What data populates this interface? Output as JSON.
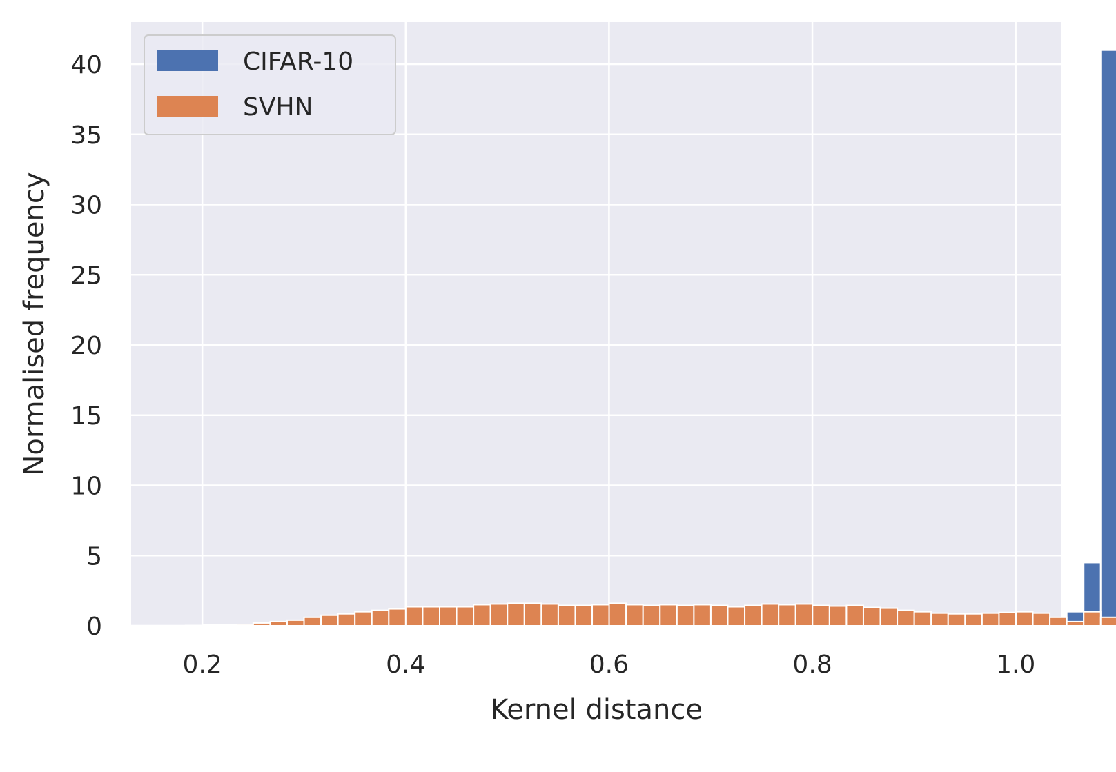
{
  "chart_data": {
    "type": "bar",
    "title": "",
    "xlabel": "Kernel distance",
    "ylabel": "Normalised frequency",
    "xlim": [
      0.13,
      1.045
    ],
    "ylim": [
      0,
      43
    ],
    "x_ticks": [
      "0.2",
      "0.4",
      "0.6",
      "0.8",
      "1.0"
    ],
    "y_ticks": [
      "0",
      "5",
      "10",
      "15",
      "20",
      "25",
      "30",
      "35",
      "40"
    ],
    "grid": true,
    "legend_position": "top-left",
    "bin_width": 0.01667,
    "bin_start": 0.1667,
    "series": [
      {
        "name": "CIFAR-10",
        "color": "#4c72b0",
        "values": [
          0.0,
          0.0,
          0.0,
          0.0,
          0.0,
          0.0,
          0.0,
          0.0,
          0.0,
          0.0,
          0.0,
          0.0,
          0.0,
          0.0,
          0.0,
          0.0,
          0.0,
          0.0,
          0.0,
          0.0,
          0.0,
          0.0,
          0.0,
          0.0,
          0.0,
          0.0,
          0.0,
          0.0,
          0.0,
          0.0,
          0.0,
          0.0,
          0.0,
          0.0,
          0.0,
          0.0,
          0.0,
          0.0,
          0.0,
          0.0,
          0.0,
          0.0,
          0.0,
          0.0,
          0.0,
          0.0,
          0.0,
          0.0,
          0.1,
          0.15,
          0.2,
          0.3,
          0.5,
          1.0,
          4.5,
          41.0
        ]
      },
      {
        "name": "SVHN",
        "color": "#dd8452",
        "values": [
          0.0,
          0.02,
          0.05,
          0.08,
          0.1,
          0.2,
          0.3,
          0.4,
          0.6,
          0.75,
          0.85,
          1.0,
          1.1,
          1.2,
          1.35,
          1.35,
          1.35,
          1.35,
          1.5,
          1.55,
          1.6,
          1.6,
          1.55,
          1.45,
          1.45,
          1.5,
          1.6,
          1.5,
          1.45,
          1.5,
          1.45,
          1.5,
          1.45,
          1.35,
          1.45,
          1.55,
          1.5,
          1.55,
          1.45,
          1.4,
          1.45,
          1.3,
          1.25,
          1.1,
          1.0,
          0.9,
          0.85,
          0.85,
          0.9,
          0.95,
          1.0,
          0.9,
          0.6,
          0.3,
          1.0,
          0.6
        ]
      }
    ]
  }
}
